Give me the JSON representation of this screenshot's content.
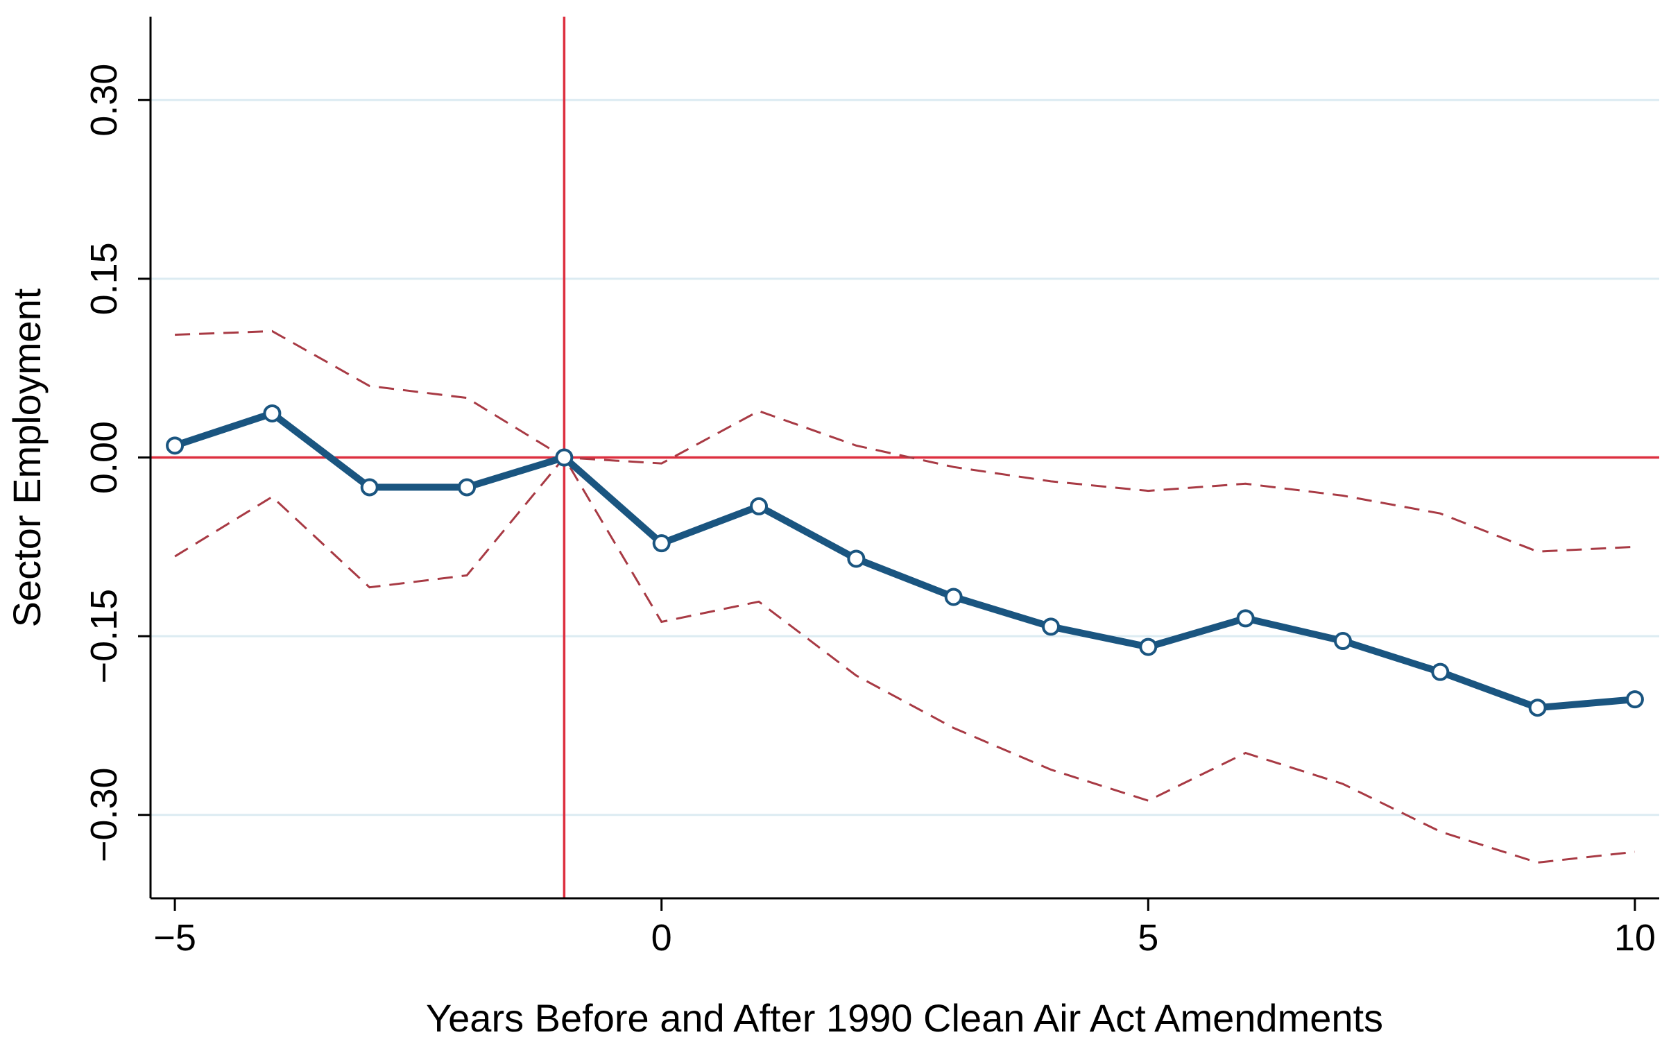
{
  "chart_data": {
    "type": "line",
    "title": "",
    "xlabel": "Years Before and After 1990 Clean Air Act Amendments",
    "ylabel": "Sector Employment",
    "xlim": [
      -5.25,
      10.25
    ],
    "ylim": [
      -0.37,
      0.37
    ],
    "x_ticks": [
      -5,
      0,
      5,
      10
    ],
    "x_tick_labels": [
      "−5",
      "0",
      "5",
      "10"
    ],
    "y_ticks": [
      -0.3,
      -0.15,
      0.0,
      0.15,
      0.3
    ],
    "y_tick_labels": [
      "−0.30",
      "−0.15",
      "0.00",
      "0.15",
      "0.30"
    ],
    "grid": "horizontal",
    "reference_lines": {
      "x": -1,
      "y": 0
    },
    "x": [
      -5,
      -4,
      -3,
      -2,
      -1,
      0,
      1,
      2,
      3,
      4,
      5,
      6,
      7,
      8,
      9,
      10
    ],
    "series": [
      {
        "role": "estimate",
        "color": "#1a5580",
        "values": [
          0.01,
          0.037,
          -0.025,
          -0.025,
          0.0,
          -0.072,
          -0.041,
          -0.085,
          -0.117,
          -0.142,
          -0.159,
          -0.135,
          -0.154,
          -0.18,
          -0.21,
          -0.203
        ]
      },
      {
        "role": "upper-ci",
        "color": "#a83a44",
        "values": [
          0.103,
          0.106,
          0.06,
          0.05,
          0.0,
          -0.005,
          0.039,
          0.01,
          -0.008,
          -0.02,
          -0.028,
          -0.022,
          -0.032,
          -0.047,
          -0.079,
          -0.075
        ]
      },
      {
        "role": "lower-ci",
        "color": "#a83a44",
        "values": [
          -0.083,
          -0.033,
          -0.109,
          -0.099,
          0.0,
          -0.138,
          -0.121,
          -0.183,
          -0.227,
          -0.262,
          -0.288,
          -0.248,
          -0.274,
          -0.314,
          -0.34,
          -0.331
        ]
      }
    ],
    "colors": {
      "reference": "#dd2f3f",
      "grid": "#dcebf2",
      "axis": "#000000"
    }
  }
}
